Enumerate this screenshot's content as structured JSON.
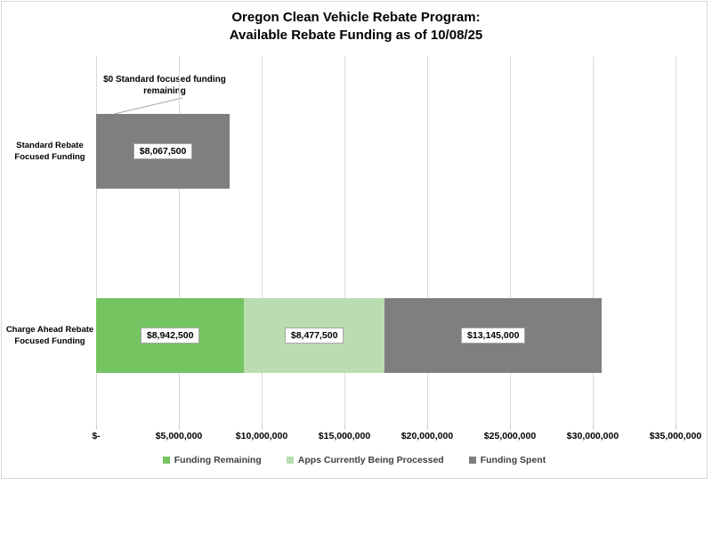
{
  "chart_data": {
    "type": "bar",
    "orientation": "horizontal",
    "stacked": true,
    "grid": true,
    "title": "Oregon Clean Vehicle Rebate Program:\nAvailable Rebate Funding as of 10/08/25",
    "categories": [
      "Standard Rebate\nFocused Funding",
      "Charge Ahead Rebate\nFocused Funding"
    ],
    "series": [
      {
        "name": "Funding Remaining",
        "color": "#74C462",
        "values": [
          0,
          8942500
        ],
        "labels": [
          null,
          "$8,942,500"
        ]
      },
      {
        "name": "Apps Currently Being Processed",
        "color": "#B9DDB0",
        "values": [
          0,
          8477500
        ],
        "labels": [
          null,
          "$8,477,500"
        ]
      },
      {
        "name": "Funding Spent",
        "color": "#7F7F7F",
        "values": [
          8067500,
          13145000
        ],
        "labels": [
          "$8,067,500",
          "$13,145,000"
        ]
      }
    ],
    "x_axis": {
      "min": 0,
      "max": 35000000,
      "step": 5000000,
      "tick_values": [
        0,
        5000000,
        10000000,
        15000000,
        20000000,
        25000000,
        30000000,
        35000000
      ],
      "tick_labels": [
        "$-",
        "$5,000,000",
        "$10,000,000",
        "$15,000,000",
        "$20,000,000",
        "$25,000,000",
        "$30,000,000",
        "$35,000,000"
      ]
    },
    "annotation": {
      "text": "$0 Standard focused funding\nremaining",
      "target_category": "Standard Rebate Focused Funding"
    },
    "legend": {
      "position": "bottom",
      "entries": [
        "Funding Remaining",
        "Apps Currently Being Processed",
        "Funding Spent"
      ]
    },
    "style": {
      "gridline_color": "#D9D9D9",
      "frame_color": "#D9D9D9",
      "label_box_border": "#A6A6A6",
      "leader_line_color": "#A6A6A6"
    }
  }
}
